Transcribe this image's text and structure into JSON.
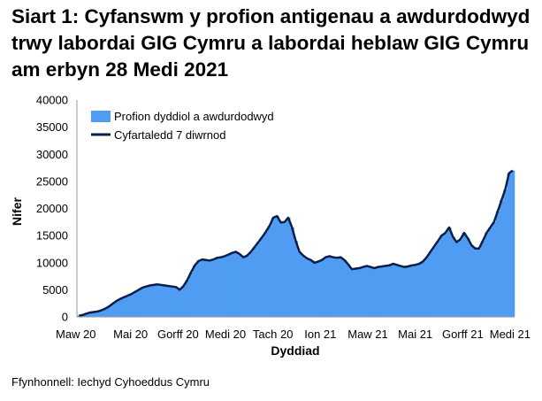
{
  "chart_data": {
    "type": "bar",
    "title": "Siart 1: Cyfanswm y profion antigenau a awdurdodwyd trwy labordai GIG Cymru a labordai heblaw GIG Cymru am erbyn 28 Medi 2021",
    "xlabel": "Dyddiad",
    "ylabel": "Nifer",
    "ylim": [
      0,
      40000
    ],
    "yticks": [
      0,
      5000,
      10000,
      15000,
      20000,
      25000,
      30000,
      35000,
      40000
    ],
    "xticks": [
      "Maw 20",
      "Mai 20",
      "Gorff 20",
      "Medi 20",
      "Tach 20",
      "Ion 21",
      "Maw 21",
      "Mai 21",
      "Gorff 21",
      "Medi 21"
    ],
    "grid": false,
    "legend_position": "top-left",
    "series": [
      {
        "name": "Profion dyddiol a awdurdodwyd",
        "kind": "bar",
        "color": "#4f9cf2",
        "weekly_values": [
          200,
          350,
          600,
          800,
          900,
          1000,
          1200,
          1500,
          1900,
          2400,
          2900,
          3300,
          3600,
          3900,
          4200,
          4600,
          5000,
          5400,
          5600,
          5800,
          5900,
          6000,
          5900,
          5800,
          5700,
          5600,
          5500,
          5000,
          5700,
          6800,
          8200,
          9500,
          10300,
          10600,
          10500,
          10400,
          10600,
          10900,
          11000,
          11200,
          11500,
          11800,
          12000,
          11600,
          11000,
          11300,
          12000,
          12900,
          13800,
          14700,
          15700,
          16800,
          18300,
          18600,
          17400,
          17500,
          18300,
          16500,
          14000,
          12000,
          11300,
          10800,
          10500,
          10000,
          10200,
          10500,
          11000,
          11200,
          11000,
          10900,
          11000,
          10500,
          9700,
          8800,
          8900,
          9000,
          9200,
          9400,
          9200,
          9000,
          9200,
          9300,
          9400,
          9500,
          9800,
          9600,
          9400,
          9200,
          9300,
          9500,
          9600,
          9800,
          10200,
          11000,
          12000,
          13000,
          14000,
          15000,
          15500,
          16500,
          14800,
          13800,
          14300,
          15500,
          14500,
          13200,
          12600,
          12600,
          14000,
          15500,
          16500,
          17500,
          19500,
          21500,
          23500,
          26500,
          27000
        ]
      },
      {
        "name": "Cyfartaledd 7 diwrnod",
        "kind": "line",
        "color": "#0b1f4c",
        "weekly_values": [
          200,
          350,
          600,
          800,
          900,
          1000,
          1200,
          1500,
          1900,
          2400,
          2900,
          3300,
          3600,
          3900,
          4200,
          4600,
          5000,
          5400,
          5600,
          5800,
          5900,
          6000,
          5900,
          5800,
          5700,
          5600,
          5500,
          5000,
          5700,
          6800,
          8200,
          9500,
          10300,
          10600,
          10500,
          10400,
          10600,
          10900,
          11000,
          11200,
          11500,
          11800,
          12000,
          11600,
          11000,
          11300,
          12000,
          12900,
          13800,
          14700,
          15700,
          16800,
          18300,
          18600,
          17400,
          17500,
          18300,
          16500,
          14000,
          12000,
          11300,
          10800,
          10500,
          10000,
          10200,
          10500,
          11000,
          11200,
          11000,
          10900,
          11000,
          10500,
          9700,
          8800,
          8900,
          9000,
          9200,
          9400,
          9200,
          9000,
          9200,
          9300,
          9400,
          9500,
          9800,
          9600,
          9400,
          9200,
          9300,
          9500,
          9600,
          9800,
          10200,
          11000,
          12000,
          13000,
          14000,
          15000,
          15500,
          16500,
          14800,
          13800,
          14300,
          15500,
          14500,
          13200,
          12600,
          12600,
          14000,
          15500,
          16500,
          17500,
          19500,
          21500,
          23500,
          26500,
          27000
        ]
      }
    ],
    "source": "Ffynhonnell: Iechyd Cyhoeddus Cymru"
  }
}
